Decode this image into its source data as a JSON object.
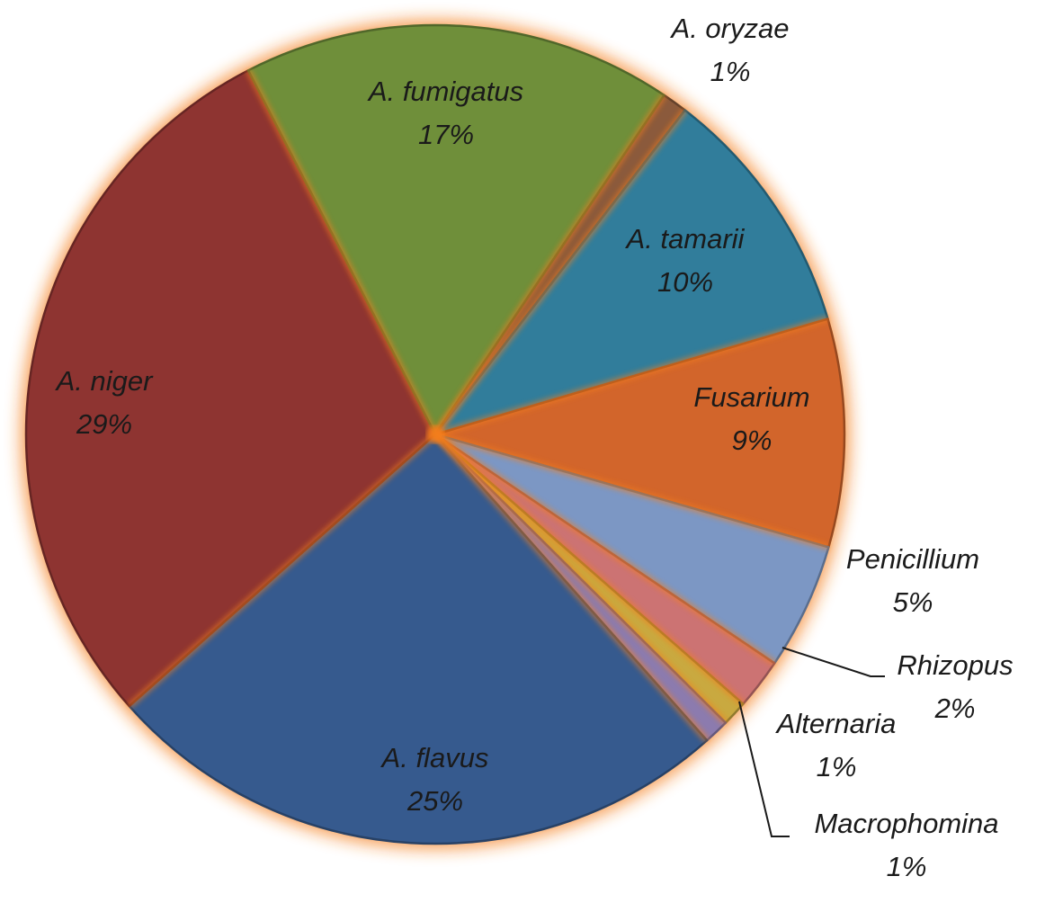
{
  "chart_data": {
    "type": "pie",
    "title": "",
    "slices": [
      {
        "label": "A. oryzae",
        "value": 1,
        "value_label": "1%",
        "color": "#8B5A3C"
      },
      {
        "label": "A. tamarii",
        "value": 10,
        "value_label": "10%",
        "color": "#317D9B"
      },
      {
        "label": "Fusarium",
        "value": 9,
        "value_label": "9%",
        "color": "#D2652B"
      },
      {
        "label": "Penicillium",
        "value": 5,
        "value_label": "5%",
        "color": "#7C97C4"
      },
      {
        "label": "Rhizopus",
        "value": 2,
        "value_label": "2%",
        "color": "#CC7373"
      },
      {
        "label": "Alternaria",
        "value": 1,
        "value_label": "1%",
        "color": "#C9A940"
      },
      {
        "label": "Macrophomina",
        "value": 1,
        "value_label": "1%",
        "color": "#8C7BAE"
      },
      {
        "label": "A. flavus",
        "value": 25,
        "value_label": "25%",
        "color": "#365A8E"
      },
      {
        "label": "A. niger",
        "value": 29,
        "value_label": "29%",
        "color": "#8E3431"
      },
      {
        "label": "A. fumigatus",
        "value": 17,
        "value_label": "17%",
        "color": "#6F8F3A"
      }
    ],
    "glow_color": "#F47E1E"
  }
}
